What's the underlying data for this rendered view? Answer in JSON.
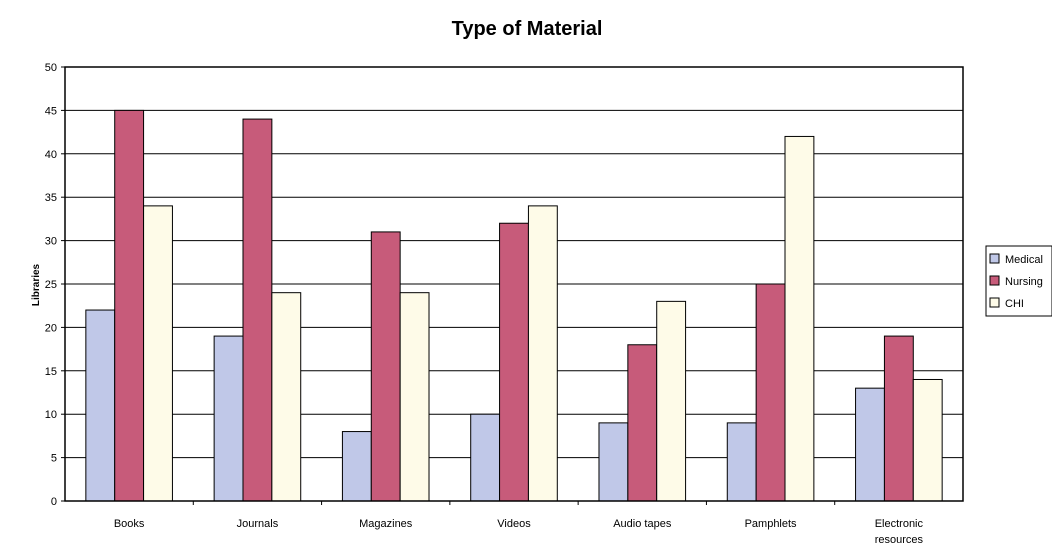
{
  "chart_data": {
    "type": "bar",
    "title": "Type of Material",
    "xlabel": "",
    "ylabel": "Libraries",
    "ylim": [
      0,
      50
    ],
    "ytick_step": 5,
    "grid": true,
    "legend_position": "right",
    "categories": [
      "Books",
      "Journals",
      "Magazines",
      "Videos",
      "Audio tapes",
      "Pamphlets",
      "Electronic resources"
    ],
    "category_lines": [
      [
        "Books"
      ],
      [
        "Journals"
      ],
      [
        "Magazines"
      ],
      [
        "Videos"
      ],
      [
        "Audio tapes"
      ],
      [
        "Pamphlets"
      ],
      [
        "Electronic",
        "resources"
      ]
    ],
    "series": [
      {
        "name": "Medical",
        "color": "#c0c8e8",
        "values": [
          22,
          19,
          8,
          10,
          9,
          9,
          13
        ]
      },
      {
        "name": "Nursing",
        "color": "#c75b7a",
        "values": [
          45,
          44,
          31,
          32,
          18,
          25,
          19
        ]
      },
      {
        "name": "CHI",
        "color": "#fefbe8",
        "values": [
          34,
          24,
          24,
          34,
          23,
          42,
          14
        ]
      }
    ]
  }
}
